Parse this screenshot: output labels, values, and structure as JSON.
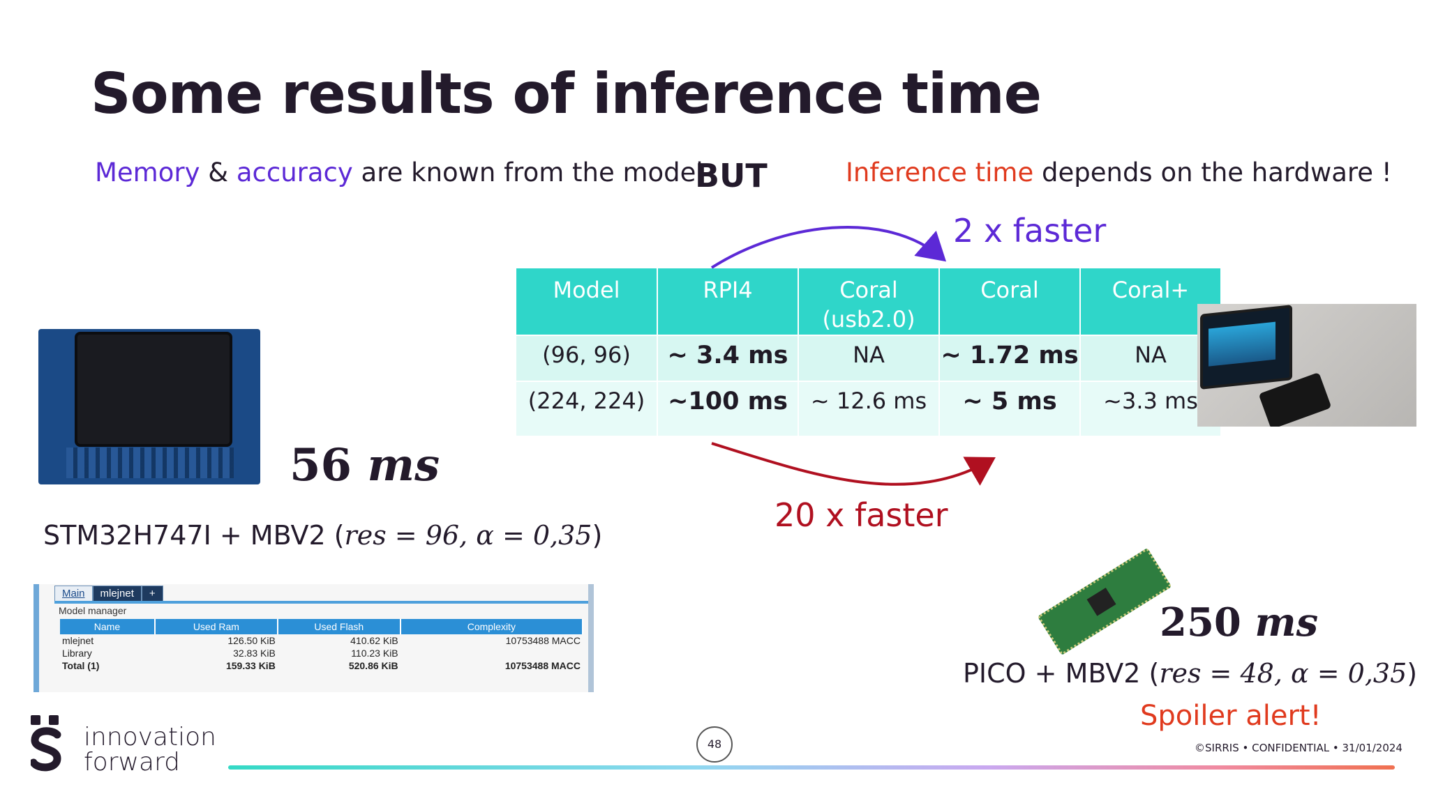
{
  "title": "Some results of inference time",
  "intro": {
    "memory": "Memory",
    "amp": " & ",
    "accuracy": "accuracy",
    "rest": " are known from the model",
    "but": "BUT",
    "inference": "Inference time",
    "depends": " depends on the hardware !"
  },
  "arrows": {
    "top_label": "2 x faster",
    "bottom_label": "20 x faster"
  },
  "colors": {
    "purple": "#5c29d6",
    "red": "#e03a1e",
    "dark_red": "#b01020",
    "teal": "#2fd6c9"
  },
  "results_table": {
    "headers": [
      "Model",
      "RPI4",
      "Coral",
      "Coral",
      "Coral+"
    ],
    "header_sub": [
      "",
      "",
      "(usb2.0)",
      "",
      ""
    ],
    "rows": [
      [
        "(96, 96)",
        "~ 3.4 ms",
        "NA",
        "~ 1.72 ms",
        "NA"
      ],
      [
        "(224, 224)",
        "~100 ms",
        "~ 12.6 ms",
        "~ 5 ms",
        "~3.3 ms"
      ]
    ]
  },
  "stm": {
    "time_value": "56",
    "time_unit": "ms",
    "caption_prefix": "STM32H747I + MBV2 (",
    "caption_math": "res = 96, α = 0,35",
    "caption_suffix": ")"
  },
  "pico": {
    "time_value": "250",
    "time_unit": "ms",
    "caption_prefix": "PICO + MBV2 (",
    "caption_math": "res = 48, α = 0,35",
    "caption_suffix": ")",
    "spoiler": "Spoiler alert!"
  },
  "model_manager": {
    "tabs": [
      "Main",
      "mlejnet",
      "+"
    ],
    "legend": "Model manager",
    "headers": [
      "Name",
      "Used Ram",
      "Used Flash",
      "Complexity"
    ],
    "rows": [
      [
        "mlejnet",
        "126.50 KiB",
        "410.62 KiB",
        "10753488 MACC"
      ],
      [
        "Library",
        "32.83 KiB",
        "110.23 KiB",
        ""
      ],
      [
        "Total (1)",
        "159.33 KiB",
        "520.86 KiB",
        "10753488 MACC"
      ]
    ]
  },
  "footer": {
    "logo_line1": "innovation",
    "logo_line2": "forward",
    "page_number": "48",
    "note": "©SIRRIS • CONFIDENTIAL • 31/01/2024"
  }
}
